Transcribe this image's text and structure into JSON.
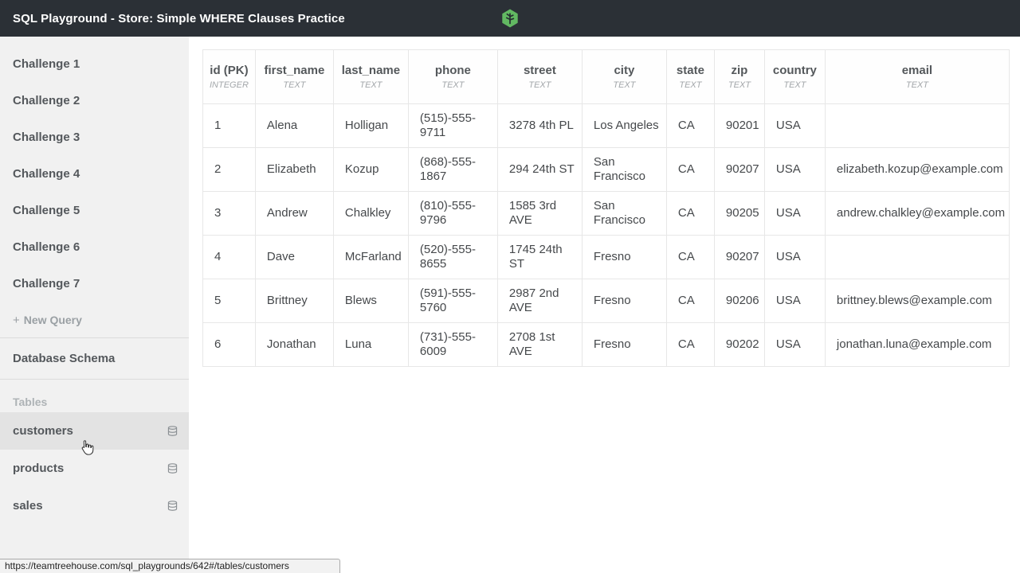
{
  "titlebar": {
    "title": "SQL Playground - Store: Simple WHERE Clauses Practice"
  },
  "sidebar": {
    "challenges": [
      "Challenge 1",
      "Challenge 2",
      "Challenge 3",
      "Challenge 4",
      "Challenge 5",
      "Challenge 6",
      "Challenge 7"
    ],
    "new_query": {
      "plus": "+",
      "label": "New Query"
    },
    "schema_heading": "Database Schema",
    "tables_heading": "Tables",
    "tables": [
      {
        "name": "customers",
        "active": true
      },
      {
        "name": "products",
        "active": false
      },
      {
        "name": "sales",
        "active": false
      }
    ]
  },
  "table": {
    "columns": [
      {
        "name": "id (PK)",
        "type": "INTEGER"
      },
      {
        "name": "first_name",
        "type": "TEXT"
      },
      {
        "name": "last_name",
        "type": "TEXT"
      },
      {
        "name": "phone",
        "type": "TEXT"
      },
      {
        "name": "street",
        "type": "TEXT"
      },
      {
        "name": "city",
        "type": "TEXT"
      },
      {
        "name": "state",
        "type": "TEXT"
      },
      {
        "name": "zip",
        "type": "TEXT"
      },
      {
        "name": "country",
        "type": "TEXT"
      },
      {
        "name": "email",
        "type": "TEXT"
      }
    ],
    "rows": [
      [
        "1",
        "Alena",
        "Holligan",
        "(515)-555-9711",
        "3278 4th PL",
        "Los Angeles",
        "CA",
        "90201",
        "USA",
        ""
      ],
      [
        "2",
        "Elizabeth",
        "Kozup",
        "(868)-555-1867",
        "294 24th ST",
        "San Francisco",
        "CA",
        "90207",
        "USA",
        "elizabeth.kozup@example.com"
      ],
      [
        "3",
        "Andrew",
        "Chalkley",
        "(810)-555-9796",
        "1585 3rd AVE",
        "San Francisco",
        "CA",
        "90205",
        "USA",
        "andrew.chalkley@example.com"
      ],
      [
        "4",
        "Dave",
        "McFarland",
        "(520)-555-8655",
        "1745 24th ST",
        "Fresno",
        "CA",
        "90207",
        "USA",
        ""
      ],
      [
        "5",
        "Brittney",
        "Blews",
        "(591)-555-5760",
        "2987 2nd AVE",
        "Fresno",
        "CA",
        "90206",
        "USA",
        "brittney.blews@example.com"
      ],
      [
        "6",
        "Jonathan",
        "Luna",
        "(731)-555-6009",
        "2708 1st AVE",
        "Fresno",
        "CA",
        "90202",
        "USA",
        "jonathan.luna@example.com"
      ]
    ]
  },
  "statusbar": {
    "url": "https://teamtreehouse.com/sql_playgrounds/642#/tables/customers"
  },
  "colors": {
    "topbar_bg": "#2b3036",
    "brand_green": "#62b862",
    "logo_inner_dark": "#262c31",
    "sidebar_bg": "#f1f1f1",
    "active_item_bg": "#e3e3e3"
  }
}
